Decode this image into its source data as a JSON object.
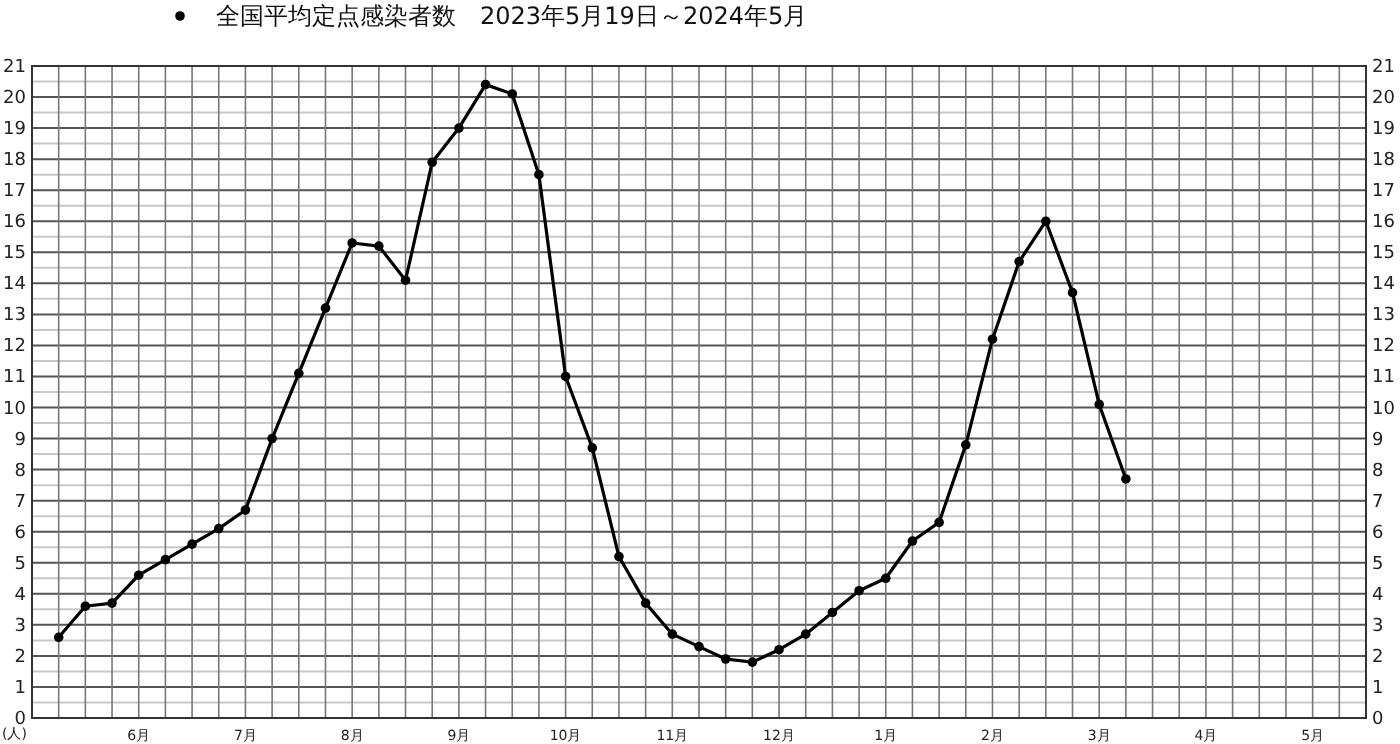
{
  "chart_data": {
    "type": "line",
    "ylabel": "(人)",
    "categories": [
      null,
      null,
      null,
      null,
      "6月",
      null,
      null,
      null,
      "7月",
      null,
      null,
      null,
      "8月",
      null,
      null,
      null,
      "9月",
      null,
      null,
      null,
      "10月",
      null,
      null,
      null,
      "11月",
      null,
      null,
      null,
      "12月",
      null,
      null,
      null,
      "1月",
      null,
      null,
      null,
      "2月",
      null,
      null,
      null,
      "3月",
      null,
      null,
      null,
      "4月",
      null,
      null,
      null,
      "5月",
      null,
      null
    ],
    "series": [
      {
        "name": "全国平均定点感染者数　2023年5月19日～2024年5月",
        "color": "#000000",
        "values": [
          null,
          2.6,
          3.6,
          3.7,
          4.6,
          5.1,
          5.6,
          6.1,
          6.7,
          9.0,
          11.1,
          13.2,
          15.3,
          15.2,
          14.1,
          17.9,
          19.0,
          20.4,
          20.1,
          17.5,
          11.0,
          8.7,
          5.2,
          3.7,
          2.7,
          2.3,
          1.9,
          1.8,
          2.2,
          2.7,
          3.4,
          4.1,
          4.5,
          5.7,
          6.3,
          8.8,
          12.2,
          14.7,
          16.0,
          13.7,
          10.1,
          7.7,
          null,
          null,
          null,
          null,
          null,
          null,
          null,
          null,
          null
        ]
      }
    ],
    "ylim": [
      0,
      21
    ],
    "yticks": [
      0,
      1,
      2,
      3,
      4,
      5,
      6,
      7,
      8,
      9,
      10,
      11,
      12,
      13,
      14,
      15,
      16,
      17,
      18,
      19,
      20,
      21
    ],
    "y2lim": [
      0,
      21
    ],
    "y2ticks": [
      0,
      1,
      2,
      3,
      4,
      5,
      6,
      7,
      8,
      9,
      10,
      11,
      12,
      13,
      14,
      15,
      16,
      17,
      18,
      19,
      20,
      21
    ],
    "grid": true,
    "legend": "top",
    "marker": "circle",
    "line_style": "solid"
  }
}
